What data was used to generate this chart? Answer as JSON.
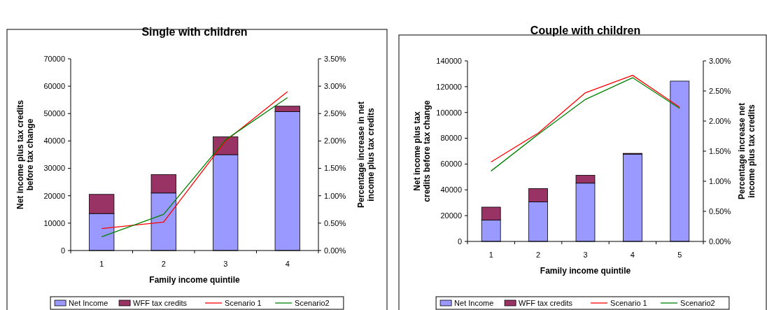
{
  "chart_data": [
    {
      "type": "bar",
      "title": "Single with children",
      "xlabel": "Family income quintile",
      "ylabel": "Net income plus tax credits\nbefore tax change",
      "y2label": "Percentage increase in net\nincome plus tax credits",
      "categories": [
        "1",
        "2",
        "3",
        "4"
      ],
      "stacked": true,
      "legend": "bottom",
      "grid": false,
      "series": [
        {
          "name": "Net Income",
          "color": "#9999ff",
          "values": [
            13500,
            21000,
            35000,
            50700
          ]
        },
        {
          "name": "WFF tax credits",
          "color": "#993366",
          "values": [
            7000,
            6700,
            6500,
            2000
          ]
        },
        {
          "name": "Scenario 1",
          "type": "line",
          "axis": "y2",
          "color": "#ff0000",
          "values": [
            0.4,
            0.52,
            2.0,
            2.9
          ]
        },
        {
          "name": "Scenario2",
          "type": "line",
          "axis": "y2",
          "color": "#008000",
          "values": [
            0.25,
            0.66,
            2.02,
            2.79
          ]
        }
      ],
      "ylim": [
        0,
        70000
      ],
      "yticks": [
        0,
        10000,
        20000,
        30000,
        40000,
        50000,
        60000,
        70000
      ],
      "y2lim": [
        0,
        3.5
      ],
      "y2ticks": [
        {
          "value": 0,
          "label": "0.00%"
        },
        {
          "value": 0.5,
          "label": "0.50%"
        },
        {
          "value": 1,
          "label": "1.00%"
        },
        {
          "value": 1.5,
          "label": "1.50%"
        },
        {
          "value": 2,
          "label": "2.00%"
        },
        {
          "value": 2.5,
          "label": "2.50%"
        },
        {
          "value": 3,
          "label": "3.00%"
        },
        {
          "value": 3.5,
          "label": "3.50%"
        }
      ]
    },
    {
      "type": "bar",
      "title": "Couple with children",
      "xlabel": "Family income quintile",
      "ylabel": "Net income plus tax\ncredits before tax change",
      "y2label": "Percentage increase net\nincome plus tax credits",
      "categories": [
        "1",
        "2",
        "3",
        "4",
        "5"
      ],
      "stacked": true,
      "legend": "bottom",
      "grid": false,
      "series": [
        {
          "name": "Net Income",
          "color": "#9999ff",
          "values": [
            16600,
            30700,
            45200,
            67700,
            124300
          ]
        },
        {
          "name": "WFF tax credits",
          "color": "#993366",
          "values": [
            10000,
            10300,
            6100,
            600,
            0
          ]
        },
        {
          "name": "Scenario 1",
          "type": "line",
          "axis": "y2",
          "color": "#ff0000",
          "values": [
            1.32,
            1.8,
            2.47,
            2.76,
            2.23
          ]
        },
        {
          "name": "Scenario2",
          "type": "line",
          "axis": "y2",
          "color": "#008000",
          "values": [
            1.17,
            1.78,
            2.36,
            2.72,
            2.21
          ]
        }
      ],
      "ylim": [
        0,
        140000
      ],
      "yticks": [
        0,
        20000,
        40000,
        60000,
        80000,
        100000,
        120000,
        140000
      ],
      "y2lim": [
        0,
        3
      ],
      "y2ticks": [
        {
          "value": 0,
          "label": "0.00%"
        },
        {
          "value": 0.5,
          "label": "0.50%"
        },
        {
          "value": 1,
          "label": "1.00%"
        },
        {
          "value": 1.5,
          "label": "1.50%"
        },
        {
          "value": 2,
          "label": "2.00%"
        },
        {
          "value": 2.5,
          "label": "2.50%"
        },
        {
          "value": 3,
          "label": "3.00%"
        }
      ]
    }
  ]
}
